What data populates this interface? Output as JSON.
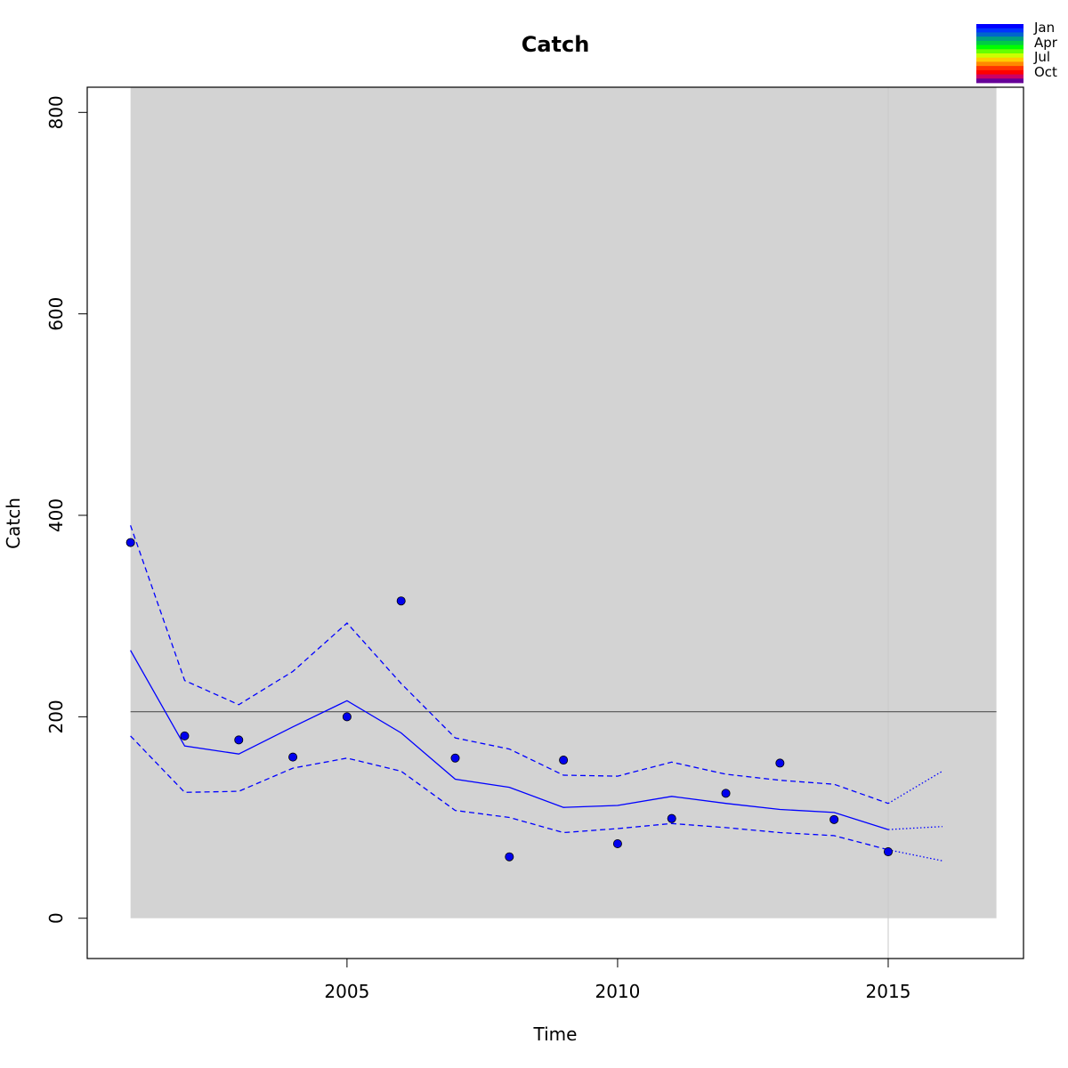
{
  "chart_data": {
    "type": "line",
    "title": "Catch",
    "xlabel": "Time",
    "ylabel": "Catch",
    "xlim": [
      2000.2,
      2017.5
    ],
    "ylim": [
      -40,
      825
    ],
    "x_ticks": [
      2005,
      2010,
      2015
    ],
    "y_ticks": [
      0,
      200,
      400,
      600,
      800
    ],
    "shaded_region": {
      "x": [
        2001,
        2017
      ],
      "y": [
        0,
        825
      ],
      "color": "#d3d3d3"
    },
    "reference_hline": {
      "y": 205,
      "color": "#555555"
    },
    "reference_vline": {
      "x": 2015,
      "color": "#c8c8c8"
    },
    "observed_points": {
      "color": "#0000ee",
      "x": [
        2001,
        2002,
        2003,
        2004,
        2005,
        2006,
        2007,
        2008,
        2009,
        2010,
        2011,
        2012,
        2013,
        2014,
        2015
      ],
      "y": [
        373,
        181,
        177,
        160,
        200,
        315,
        159,
        61,
        157,
        74,
        99,
        124,
        154,
        98,
        66
      ]
    },
    "series": [
      {
        "style": "solid",
        "color": "#0000ff",
        "x": [
          2001,
          2002,
          2003,
          2004,
          2005,
          2006,
          2007,
          2008,
          2009,
          2010,
          2011,
          2012,
          2013,
          2014,
          2015
        ],
        "y": [
          266,
          171,
          163,
          190,
          216,
          184,
          138,
          130,
          110,
          112,
          121,
          114,
          108,
          105,
          88
        ]
      },
      {
        "style": "dashed",
        "color": "#0000ff",
        "x": [
          2001,
          2002,
          2003,
          2004,
          2005,
          2006,
          2007,
          2008,
          2009,
          2010,
          2011,
          2012,
          2013,
          2014,
          2015
        ],
        "y": [
          390,
          236,
          212,
          245,
          293,
          233,
          179,
          168,
          142,
          141,
          155,
          143,
          137,
          133,
          114
        ]
      },
      {
        "style": "dashed",
        "color": "#0000ff",
        "x": [
          2001,
          2002,
          2003,
          2004,
          2005,
          2006,
          2007,
          2008,
          2009,
          2010,
          2011,
          2012,
          2013,
          2014,
          2015
        ],
        "y": [
          181,
          125,
          126,
          149,
          159,
          146,
          107,
          100,
          85,
          89,
          94,
          90,
          85,
          82,
          68
        ]
      },
      {
        "style": "dotted",
        "color": "#0000ff",
        "x": [
          2015,
          2016
        ],
        "y": [
          88,
          91
        ]
      },
      {
        "style": "dotted",
        "color": "#0000ff",
        "x": [
          2015,
          2016
        ],
        "y": [
          114,
          146
        ]
      },
      {
        "style": "dotted",
        "color": "#0000ff",
        "x": [
          2015,
          2016
        ],
        "y": [
          68,
          57
        ]
      }
    ],
    "legend": {
      "placement": "top-right",
      "labels": [
        "Jan",
        "Apr",
        "Jul",
        "Oct"
      ],
      "colors": [
        "#0000ff",
        "#0033ff",
        "#0066cc",
        "#00a080",
        "#00cc44",
        "#00ff00",
        "#66ff00",
        "#ccff00",
        "#ffcc00",
        "#ff8800",
        "#ff3300",
        "#ff0000",
        "#cc0066",
        "#660099"
      ]
    }
  }
}
